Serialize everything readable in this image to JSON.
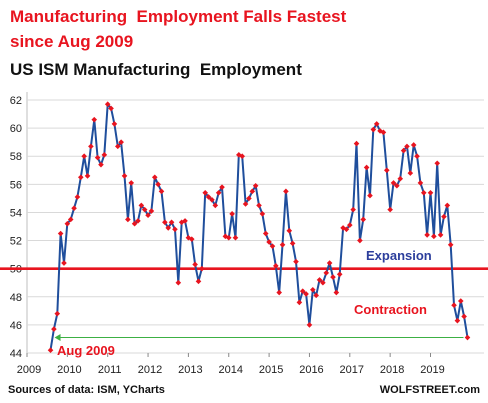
{
  "chart_data": {
    "type": "line",
    "title_line1": "Manufacturing  Employment Falls Fastest",
    "title_line2": "since Aug 2009",
    "subtitle": "US ISM Manufacturing  Employment",
    "source": "Sources of data: ISM, YCharts",
    "brand": "WOLFSTREET.com",
    "ylim": [
      44,
      62
    ],
    "y_ticks": [
      44,
      46,
      48,
      50,
      52,
      54,
      56,
      58,
      60,
      62
    ],
    "x_ticks": [
      "2009",
      "2010",
      "2011",
      "2012",
      "2013",
      "2014",
      "2015",
      "2016",
      "2017",
      "2018",
      "2019"
    ],
    "x_start": "2009-01",
    "x_end": "2019-12",
    "threshold": {
      "value": 50,
      "color": "#e8141f",
      "label_above": "Expansion",
      "label_below": "Contraction"
    },
    "reference_line": {
      "value": 45.1,
      "color": "#3cb043",
      "label": "Aug 2009"
    },
    "colors": {
      "line": "#1f4e9c",
      "marker": "#e8141f",
      "title": "#e8141f",
      "subtitle": "#111111",
      "expansion_label": "#2c3e9c",
      "contraction_label": "#e8141f",
      "annotation": "#e8141f",
      "grid": "#d9d9d9"
    },
    "series": [
      {
        "x": [
          "2009-08",
          "2009-09",
          "2009-10",
          "2009-11",
          "2009-12",
          "2010-01",
          "2010-02",
          "2010-03",
          "2010-04",
          "2010-05",
          "2010-06",
          "2010-07",
          "2010-08",
          "2010-09",
          "2010-10",
          "2010-11",
          "2010-12",
          "2011-01",
          "2011-02",
          "2011-03",
          "2011-04",
          "2011-05",
          "2011-06",
          "2011-07",
          "2011-08",
          "2011-09",
          "2011-10",
          "2011-11",
          "2011-12",
          "2012-01",
          "2012-02",
          "2012-03",
          "2012-04",
          "2012-05",
          "2012-06",
          "2012-07",
          "2012-08",
          "2012-09",
          "2012-10",
          "2012-11",
          "2012-12",
          "2013-01",
          "2013-02",
          "2013-03",
          "2013-04",
          "2013-05",
          "2013-06",
          "2013-07",
          "2013-08",
          "2013-09",
          "2013-10",
          "2013-11",
          "2013-12",
          "2014-01",
          "2014-02",
          "2014-03",
          "2014-04",
          "2014-05",
          "2014-06",
          "2014-07",
          "2014-08",
          "2014-09",
          "2014-10",
          "2014-11",
          "2014-12",
          "2015-01",
          "2015-02",
          "2015-03",
          "2015-04",
          "2015-05",
          "2015-06",
          "2015-07",
          "2015-08",
          "2015-09",
          "2015-10",
          "2015-11",
          "2015-12",
          "2016-01",
          "2016-02",
          "2016-03",
          "2016-04",
          "2016-05",
          "2016-06",
          "2016-07",
          "2016-08",
          "2016-09",
          "2016-10",
          "2016-11",
          "2016-12",
          "2017-01",
          "2017-02",
          "2017-03",
          "2017-04",
          "2017-05",
          "2017-06",
          "2017-07",
          "2017-08",
          "2017-09",
          "2017-10",
          "2017-11",
          "2017-12",
          "2018-01",
          "2018-02",
          "2018-03",
          "2018-04",
          "2018-05",
          "2018-06",
          "2018-07",
          "2018-08",
          "2018-09",
          "2018-10",
          "2018-11",
          "2018-12",
          "2019-01",
          "2019-02",
          "2019-03",
          "2019-04",
          "2019-05",
          "2019-06",
          "2019-07",
          "2019-08",
          "2019-09",
          "2019-10",
          "2019-11",
          "2019-12"
        ],
        "values": [
          44.2,
          45.7,
          46.8,
          52.5,
          50.4,
          53.2,
          53.5,
          54.3,
          55.1,
          56.5,
          58.0,
          56.6,
          58.7,
          60.6,
          57.9,
          57.4,
          58.1,
          61.7,
          61.4,
          60.3,
          58.7,
          59.0,
          56.6,
          53.5,
          56.1,
          53.2,
          53.4,
          54.5,
          54.2,
          53.8,
          54.1,
          56.5,
          56.0,
          55.5,
          53.3,
          52.9,
          53.3,
          52.8,
          49.0,
          53.3,
          53.4,
          52.2,
          52.1,
          50.3,
          49.1,
          50.0,
          55.4,
          55.1,
          54.9,
          54.5,
          55.4,
          55.8,
          52.3,
          52.2,
          53.9,
          52.2,
          58.1,
          58.0,
          54.6,
          55.0,
          55.5,
          55.9,
          54.5,
          53.9,
          52.5,
          51.9,
          51.6,
          50.2,
          48.3,
          51.7,
          55.5,
          52.7,
          51.8,
          50.5,
          47.6,
          48.4,
          48.2,
          46.0,
          48.5,
          48.1,
          49.2,
          49.0,
          49.7,
          50.4,
          49.4,
          48.3,
          49.6,
          52.9,
          52.8,
          53.1,
          54.2,
          58.9,
          52.0,
          53.5,
          57.2,
          55.2,
          59.9,
          60.3,
          59.8,
          59.7,
          57.0,
          54.2,
          56.1,
          55.9,
          56.4,
          58.4,
          58.7,
          56.8,
          58.8,
          58.0,
          56.1,
          55.4,
          52.4,
          55.4,
          52.3,
          57.5,
          52.4,
          53.7,
          54.5,
          51.7,
          47.4,
          46.3,
          47.7,
          46.6,
          45.1
        ]
      }
    ]
  }
}
